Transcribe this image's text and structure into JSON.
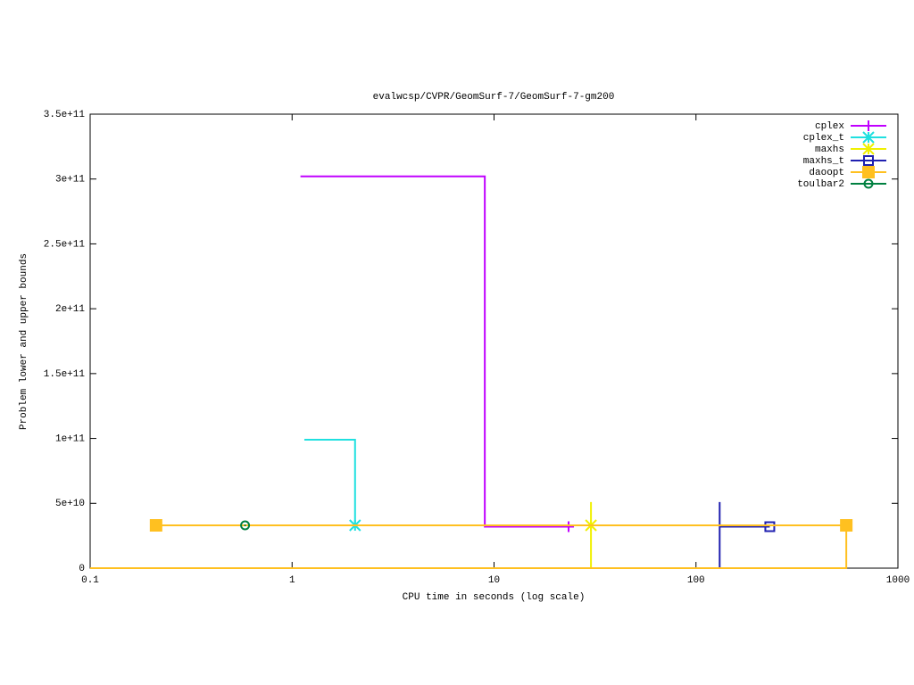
{
  "chart_data": {
    "type": "line",
    "title": "evalwcsp/CVPR/GeomSurf-7/GeomSurf-7-gm200",
    "x_label": "CPU time in seconds (log scale)",
    "y_label": "Problem lower and upper bounds",
    "x_log_scale": true,
    "xlim": [
      0.1,
      1000
    ],
    "xticks": [
      0.1,
      1,
      10,
      100,
      1000
    ],
    "ylim": [
      0,
      350000000000
    ],
    "yticks": [
      0,
      {
        "value": 50000000000,
        "label": "5e+10"
      },
      {
        "value": 100000000000,
        "label": "1e+11"
      },
      {
        "value": 150000000000,
        "label": "1.5e+11"
      },
      {
        "value": 200000000000,
        "label": "2e+11"
      },
      {
        "value": 250000000000,
        "label": "2.5e+11"
      },
      {
        "value": 300000000000,
        "label": "3e+11"
      },
      {
        "value": 350000000000,
        "label": "3.5e+11"
      }
    ],
    "legend": "top-right",
    "series": [
      {
        "name": "cplex",
        "color": "#c000ff",
        "marker": "plus",
        "x": [
          1.1,
          9.0,
          9.0,
          23.4
        ],
        "values": [
          302000000000,
          302000000000,
          32000000000,
          32000000000
        ],
        "marker_x": [
          23.4
        ],
        "marker_y": [
          32000000000
        ]
      },
      {
        "name": "cplex_t",
        "color": "#20e0e0",
        "marker": "star",
        "x": [
          1.15,
          2.05,
          2.05
        ],
        "values": [
          99000000000,
          99000000000,
          33000000000
        ],
        "marker_x": [
          2.05
        ],
        "marker_y": [
          33000000000
        ]
      },
      {
        "name": "maxhs",
        "color": "#f0f000",
        "marker": "star",
        "x": [
          30.2,
          30.2
        ],
        "values": [
          0,
          51000000000
        ],
        "marker_x": [
          30.2
        ],
        "marker_y": [
          33000000000
        ]
      },
      {
        "name": "maxhs_t",
        "color": "#2020b0",
        "marker": "square",
        "x": [
          131,
          131,
          131,
          232
        ],
        "values": [
          0,
          51000000000,
          32000000000,
          32000000000
        ],
        "marker_x": [
          232
        ],
        "marker_y": [
          32000000000
        ]
      },
      {
        "name": "daoopt",
        "color": "#ffc020",
        "marker": "filled-square",
        "x": [
          0.1,
          555,
          555,
          0.212
        ],
        "values": [
          0,
          0,
          33000000000,
          33000000000
        ],
        "marker_x": [
          0.212,
          555
        ],
        "marker_y": [
          33000000000,
          33000000000
        ]
      },
      {
        "name": "toulbar2",
        "color": "#008040",
        "marker": "circle",
        "x": [
          0.585
        ],
        "values": [
          33000000000
        ],
        "marker_x": [
          0.585
        ],
        "marker_y": [
          33000000000
        ]
      }
    ]
  }
}
